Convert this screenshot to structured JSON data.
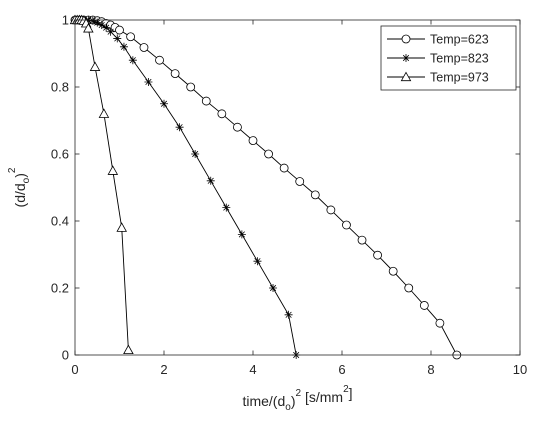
{
  "chart_data": {
    "type": "line",
    "xlabel_parts": [
      "time/(d",
      "o",
      ")",
      "2",
      " [s/mm",
      "2",
      "]"
    ],
    "ylabel_parts": [
      "(d/d",
      "o",
      ")",
      "2"
    ],
    "xlim": [
      0,
      10
    ],
    "ylim": [
      0,
      1
    ],
    "xticks": [
      0,
      2,
      4,
      6,
      8,
      10
    ],
    "yticks": [
      0,
      0.2,
      0.4,
      0.6,
      0.8,
      1
    ],
    "xtick_labels": [
      "0",
      "2",
      "4",
      "6",
      "8",
      "10"
    ],
    "ytick_labels": [
      "0",
      "0.2",
      "0.4",
      "0.6",
      "0.8",
      "1"
    ],
    "grid": false,
    "legend_position": "top-right",
    "line_color": "#000000",
    "series": [
      {
        "name": "Temp=623",
        "marker": "circle",
        "x": [
          0,
          0.1,
          0.2,
          0.3,
          0.4,
          0.5,
          0.6,
          0.7,
          0.8,
          0.9,
          1.0,
          1.25,
          1.55,
          1.9,
          2.25,
          2.6,
          2.95,
          3.3,
          3.65,
          4.0,
          4.35,
          4.7,
          5.05,
          5.4,
          5.75,
          6.1,
          6.45,
          6.8,
          7.15,
          7.5,
          7.85,
          8.2,
          8.58
        ],
        "y": [
          1.0,
          1.0,
          1.0,
          1.0,
          1.0,
          0.998,
          0.995,
          0.99,
          0.985,
          0.978,
          0.97,
          0.95,
          0.918,
          0.88,
          0.84,
          0.8,
          0.758,
          0.72,
          0.68,
          0.64,
          0.6,
          0.558,
          0.518,
          0.478,
          0.433,
          0.388,
          0.343,
          0.298,
          0.25,
          0.2,
          0.148,
          0.095,
          0.0
        ]
      },
      {
        "name": "Temp=823",
        "marker": "star",
        "x": [
          0,
          0.1,
          0.2,
          0.3,
          0.4,
          0.5,
          0.6,
          0.7,
          0.8,
          0.95,
          1.1,
          1.3,
          1.65,
          2.0,
          2.35,
          2.7,
          3.05,
          3.4,
          3.75,
          4.1,
          4.45,
          4.8,
          4.97
        ],
        "y": [
          1.0,
          1.0,
          1.0,
          1.0,
          0.998,
          0.992,
          0.985,
          0.977,
          0.965,
          0.945,
          0.92,
          0.88,
          0.815,
          0.75,
          0.68,
          0.6,
          0.52,
          0.44,
          0.36,
          0.28,
          0.2,
          0.12,
          0.0
        ]
      },
      {
        "name": "Temp=973",
        "marker": "triangle",
        "x": [
          0,
          0.05,
          0.1,
          0.15,
          0.2,
          0.25,
          0.3,
          0.45,
          0.65,
          0.85,
          1.05,
          1.2
        ],
        "y": [
          1.0,
          1.0,
          1.0,
          1.0,
          0.998,
          0.99,
          0.975,
          0.86,
          0.72,
          0.55,
          0.38,
          0.015
        ]
      }
    ]
  }
}
